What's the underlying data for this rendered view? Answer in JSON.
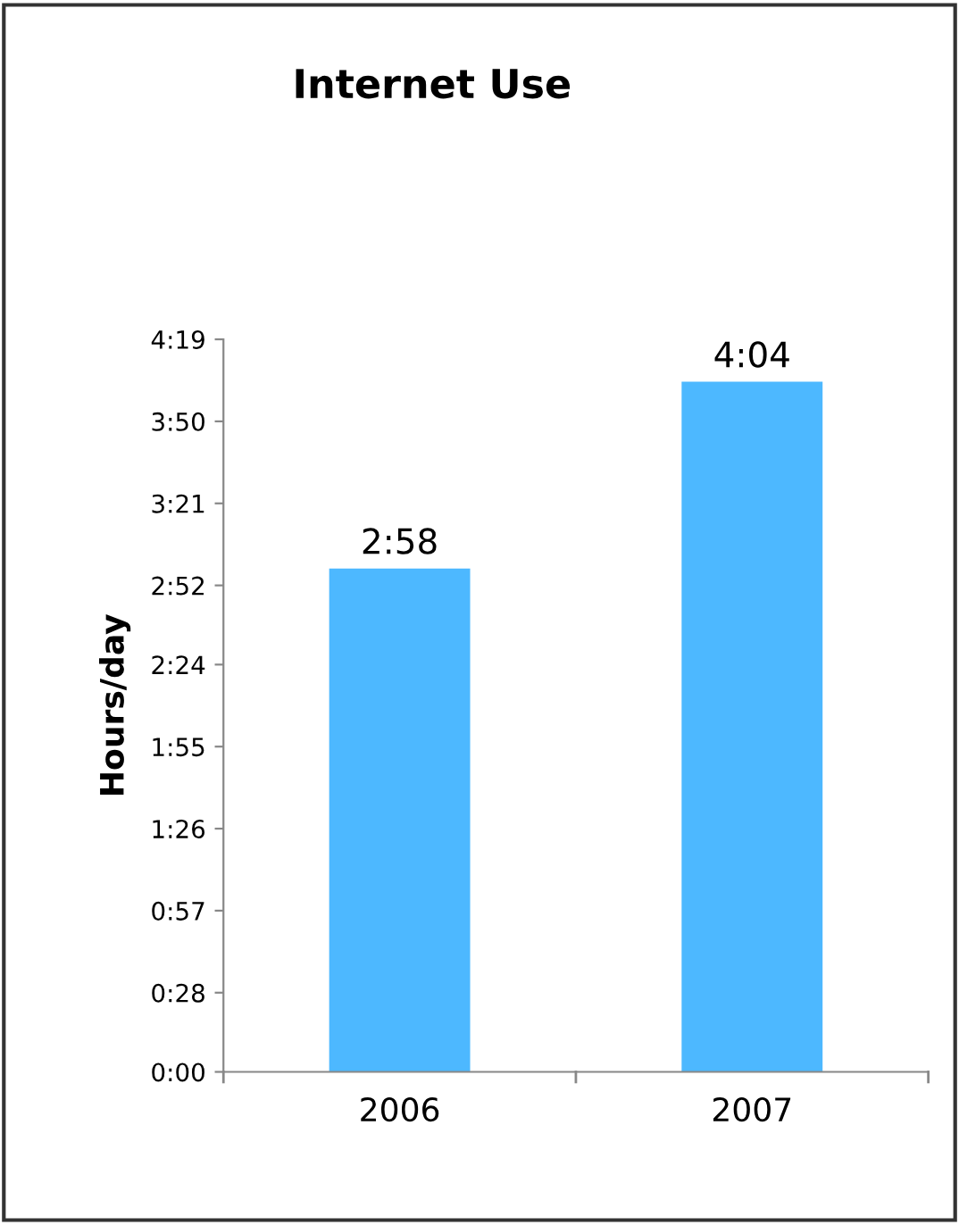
{
  "chart_data": {
    "type": "bar",
    "title": "Internet Use",
    "ylabel": "Hours/day",
    "categories": [
      "2006",
      "2007"
    ],
    "values": [
      2.9667,
      4.0667
    ],
    "value_labels": [
      "2:58",
      "4:04"
    ],
    "color": "#4db8ff",
    "ylim": [
      0,
      4.3167
    ],
    "yticks": [
      {
        "value": 0,
        "label": "0:00"
      },
      {
        "value": 0.4667,
        "label": "0:28"
      },
      {
        "value": 0.95,
        "label": "0:57"
      },
      {
        "value": 1.4333,
        "label": "1:26"
      },
      {
        "value": 1.9167,
        "label": "1:55"
      },
      {
        "value": 2.4,
        "label": "2:24"
      },
      {
        "value": 2.8667,
        "label": "2:52"
      },
      {
        "value": 3.35,
        "label": "3:21"
      },
      {
        "value": 3.8333,
        "label": "3:50"
      },
      {
        "value": 4.3167,
        "label": "4:19"
      }
    ],
    "grid": false,
    "legend": false
  }
}
